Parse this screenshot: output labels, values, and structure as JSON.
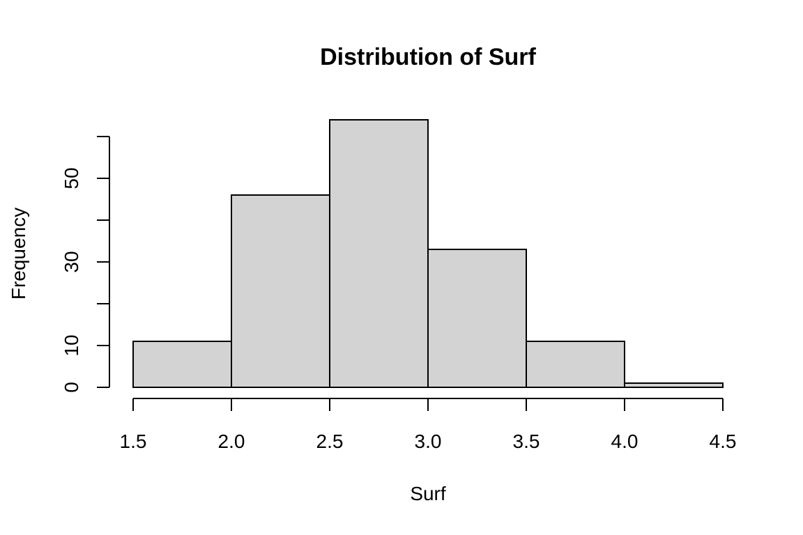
{
  "chart_data": {
    "type": "bar",
    "title": "Distribution of Surf",
    "xlabel": "Surf",
    "ylabel": "Frequency",
    "bin_edges": [
      1.5,
      2.0,
      2.5,
      3.0,
      3.5,
      4.0,
      4.5
    ],
    "values": [
      11,
      46,
      64,
      33,
      11,
      1
    ],
    "x_ticks": [
      "1.5",
      "2.0",
      "2.5",
      "3.0",
      "3.5",
      "4.0",
      "4.5"
    ],
    "y_ticks": [
      0,
      10,
      20,
      30,
      40,
      50,
      60
    ],
    "y_tick_labels": [
      "0",
      "10",
      "",
      "30",
      "",
      "50",
      ""
    ],
    "xlim": [
      1.5,
      4.5
    ],
    "ylim": [
      0,
      64
    ],
    "bar_color": "#d3d3d3",
    "grid": false
  }
}
